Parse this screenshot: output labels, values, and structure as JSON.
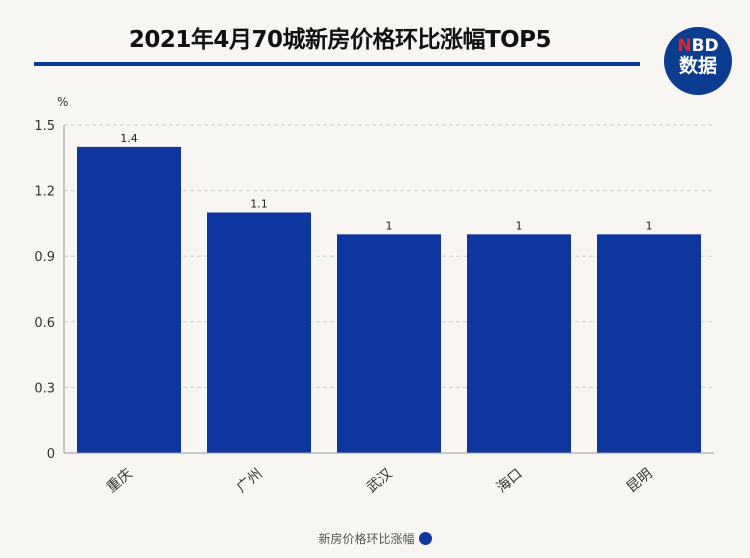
{
  "header": {
    "title": "2021年4月70城新房价格环比涨幅TOP5",
    "logo_top": "NBD",
    "logo_bottom": "数据"
  },
  "colors": {
    "bar": "#0f359e",
    "rule": "#0a3a96",
    "grid": "#cfcfcf"
  },
  "chart_data": {
    "type": "bar",
    "title": "2021年4月70城新房价格环比涨幅TOP5",
    "ylabel": "%",
    "ylim": [
      0,
      1.5
    ],
    "yticks": [
      "0",
      "0.3",
      "0.6",
      "0.9",
      "1.2",
      "1.5"
    ],
    "grid": true,
    "legend_position": "bottom",
    "categories": [
      "重庆",
      "广州",
      "武汉",
      "海口",
      "昆明"
    ],
    "series": [
      {
        "name": "新房价格环比涨幅",
        "values": [
          1.4,
          1.1,
          1,
          1,
          1
        ],
        "labels": [
          "1.4",
          "1.1",
          "1",
          "1",
          "1"
        ]
      }
    ]
  }
}
